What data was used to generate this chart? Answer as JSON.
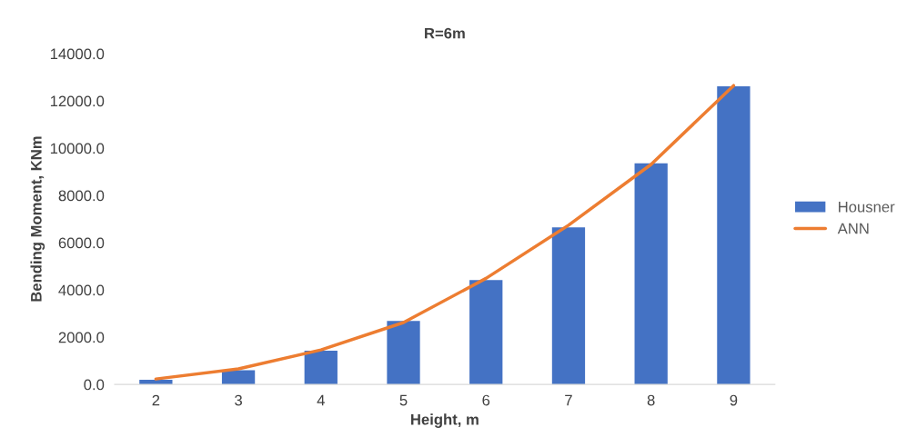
{
  "chart_data": {
    "type": "bar",
    "title": "R=6m",
    "xlabel": "Height, m",
    "ylabel": "Bending Moment, KNm",
    "categories": [
      "2",
      "3",
      "4",
      "5",
      "6",
      "7",
      "8",
      "9"
    ],
    "series": [
      {
        "name": "Housner",
        "color": "#4472c4",
        "values": [
          200,
          600,
          1430,
          2690,
          4420,
          6650,
          9360,
          12620
        ]
      },
      {
        "name": "ANN",
        "type": "line",
        "color": "#ed7d31",
        "values": [
          230,
          660,
          1460,
          2620,
          4490,
          6740,
          9310,
          12650
        ]
      }
    ],
    "ylim": [
      0,
      14000
    ],
    "yticks": [
      {
        "value": 0,
        "label": "0.0"
      },
      {
        "value": 2000,
        "label": "2000.0"
      },
      {
        "value": 4000,
        "label": "4000.0"
      },
      {
        "value": 6000,
        "label": "6000.0"
      },
      {
        "value": 8000,
        "label": "8000.0"
      },
      {
        "value": 10000,
        "label": "10000.0"
      },
      {
        "value": 12000,
        "label": "12000.0"
      },
      {
        "value": 14000,
        "label": "14000.0"
      }
    ],
    "grid": false,
    "legend": "right",
    "marker": "none",
    "line_style": "solid"
  }
}
